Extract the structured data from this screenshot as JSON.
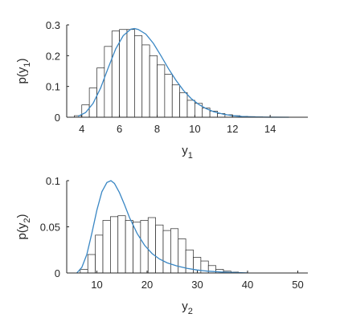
{
  "chart_data": [
    {
      "type": "bar",
      "xlabel": "y",
      "xlabel_sub": "1",
      "ylabel_pre": "p(y",
      "ylabel_sub": "1",
      "ylabel_post": ")",
      "xlim": [
        3.2,
        16
      ],
      "ylim": [
        0,
        0.3
      ],
      "xticks": [
        4,
        6,
        8,
        10,
        12,
        14
      ],
      "yticks": [
        0,
        0.1,
        0.2,
        0.3
      ],
      "ytick_labels": [
        "0",
        "0.1",
        "0.2",
        "0.3"
      ],
      "grid": false,
      "bin_edges": [
        3.6,
        4.0,
        4.4,
        4.8,
        5.2,
        5.6,
        6.0,
        6.4,
        6.8,
        7.2,
        7.6,
        8.0,
        8.4,
        8.8,
        9.2,
        9.6,
        10.0,
        10.4,
        10.8,
        11.2,
        11.6,
        12.0,
        12.4,
        12.8,
        13.2,
        13.6
      ],
      "bin_heights": [
        0.005,
        0.04,
        0.095,
        0.16,
        0.23,
        0.28,
        0.285,
        0.285,
        0.265,
        0.235,
        0.2,
        0.17,
        0.14,
        0.105,
        0.08,
        0.055,
        0.045,
        0.03,
        0.02,
        0.012,
        0.008,
        0.005,
        0.003,
        0.002,
        0.001
      ],
      "curve": {
        "x": [
          3.8,
          4.2,
          4.6,
          5.0,
          5.4,
          5.8,
          6.2,
          6.6,
          6.8,
          7.0,
          7.4,
          7.8,
          8.2,
          8.6,
          9.0,
          9.4,
          9.8,
          10.2,
          10.6,
          11.0,
          11.5,
          12.0,
          12.5,
          13.0,
          13.5,
          14.0,
          15.0
        ],
        "y": [
          0.003,
          0.015,
          0.045,
          0.095,
          0.16,
          0.222,
          0.265,
          0.286,
          0.288,
          0.285,
          0.27,
          0.24,
          0.2,
          0.158,
          0.12,
          0.087,
          0.061,
          0.042,
          0.028,
          0.018,
          0.01,
          0.005,
          0.0025,
          0.0012,
          0.0005,
          0.0002,
          0.0
        ],
        "color": "#3a87c4"
      },
      "bar_edge_color": "#262626",
      "bar_face_color": "#ffffff"
    },
    {
      "type": "bar",
      "xlabel": "y",
      "xlabel_sub": "2",
      "ylabel_pre": "p(y",
      "ylabel_sub": "2",
      "ylabel_post": ")",
      "xlim": [
        4,
        52
      ],
      "ylim": [
        0,
        0.1
      ],
      "xticks": [
        10,
        20,
        30,
        40,
        50
      ],
      "yticks": [
        0,
        0.05,
        0.1
      ],
      "ytick_labels": [
        "0",
        "0.05",
        "0.1"
      ],
      "grid": false,
      "bin_edges": [
        6.7,
        8.2,
        9.7,
        11.2,
        12.7,
        14.2,
        15.7,
        17.2,
        18.7,
        20.2,
        21.7,
        23.2,
        24.7,
        26.2,
        27.7,
        29.2,
        30.7,
        32.2,
        33.7,
        35.2,
        36.7,
        38.2
      ],
      "bin_heights": [
        0.004,
        0.02,
        0.041,
        0.057,
        0.061,
        0.062,
        0.057,
        0.055,
        0.057,
        0.06,
        0.052,
        0.046,
        0.048,
        0.037,
        0.025,
        0.017,
        0.013,
        0.008,
        0.004,
        0.002,
        0.001
      ],
      "curve": {
        "x": [
          6,
          7,
          8,
          9,
          10,
          11,
          12,
          12.8,
          13.5,
          14.5,
          15.5,
          16.5,
          18,
          19.5,
          21,
          22.5,
          24,
          26,
          28,
          30,
          32,
          35,
          38,
          40
        ],
        "y": [
          0.0,
          0.006,
          0.02,
          0.043,
          0.068,
          0.088,
          0.098,
          0.1,
          0.097,
          0.087,
          0.074,
          0.06,
          0.043,
          0.03,
          0.021,
          0.015,
          0.011,
          0.0075,
          0.005,
          0.0032,
          0.002,
          0.001,
          0.0004,
          0.0001
        ],
        "color": "#3a87c4"
      },
      "bar_edge_color": "#262626",
      "bar_face_color": "#ffffff"
    }
  ]
}
